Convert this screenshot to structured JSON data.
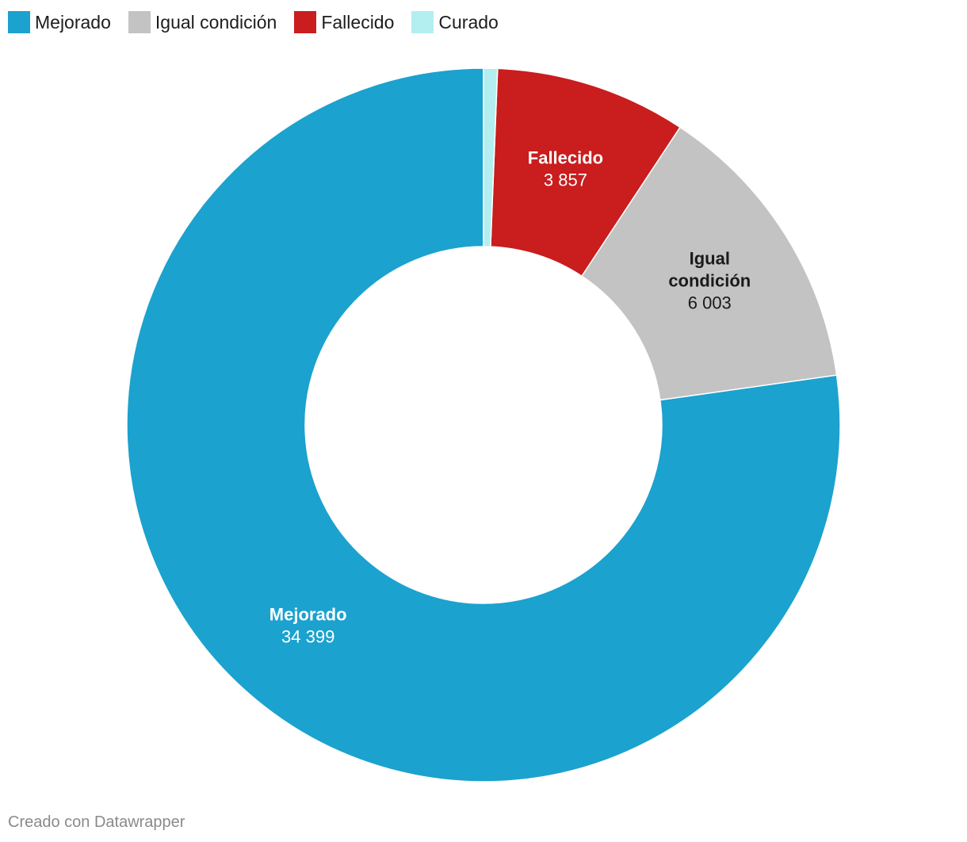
{
  "chart_data": {
    "type": "pie",
    "style": "donut",
    "title": "",
    "legend_position": "top-left",
    "categories": [
      "Mejorado",
      "Igual condición",
      "Fallecido",
      "Curado"
    ],
    "values": [
      34399,
      6003,
      3857,
      280
    ],
    "value_labels": [
      "34 399",
      "6 003",
      "3 857",
      ""
    ],
    "colors": [
      "#1ba2ce",
      "#c3c3c3",
      "#c91d1e",
      "#b3eef0"
    ],
    "label_colors": [
      "#ffffff",
      "#1a1a1a",
      "#ffffff",
      "#1a1a1a"
    ],
    "show_label": [
      true,
      true,
      true,
      false
    ]
  },
  "footer": "Creado con Datawrapper"
}
